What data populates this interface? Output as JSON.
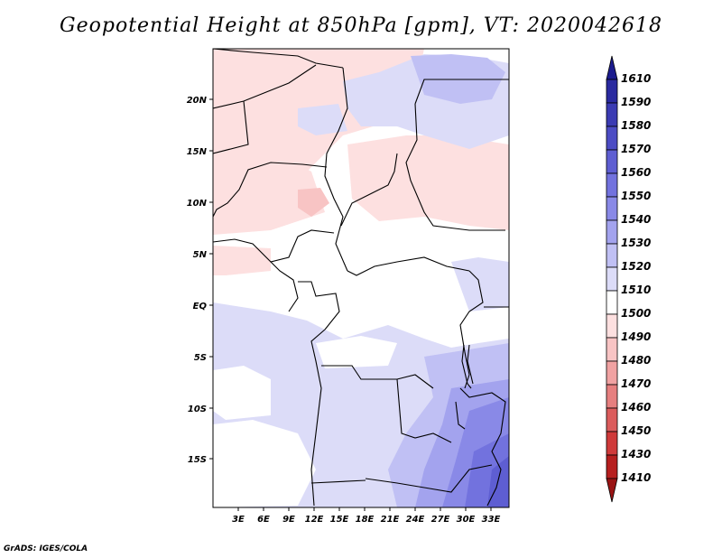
{
  "title": "Geopotential Height at 850hPa [gpm], VT: 2020042618",
  "credit": "GrADS: IGES/COLA",
  "map": {
    "variable": "Geopotential Height",
    "level": "850hPa",
    "units": "gpm",
    "valid_time": "2020042618",
    "lat_labels": [
      "20N",
      "15N",
      "10N",
      "5N",
      "EQ",
      "5S",
      "10S",
      "15S"
    ],
    "lon_labels": [
      "3E",
      "6E",
      "9E",
      "12E",
      "15E",
      "18E",
      "21E",
      "24E",
      "27E",
      "30E",
      "33E"
    ]
  },
  "colorbar": {
    "labels": [
      "1610",
      "1590",
      "1580",
      "1570",
      "1560",
      "1550",
      "1540",
      "1530",
      "1520",
      "1510",
      "1500",
      "1490",
      "1480",
      "1470",
      "1460",
      "1450",
      "1430",
      "1410"
    ],
    "colors": [
      "#1c1c8e",
      "#2a2aa0",
      "#3b3bb3",
      "#4c4cc4",
      "#5e5ed2",
      "#7272de",
      "#8989e7",
      "#a3a3ee",
      "#c0c0f4",
      "#dcdcf8",
      "#ffffff",
      "#fde0e0",
      "#f8c4c4",
      "#f0a2a2",
      "#e67f7f",
      "#db5c5c",
      "#cf3a3a",
      "#b61f1f",
      "#9a1414"
    ]
  }
}
